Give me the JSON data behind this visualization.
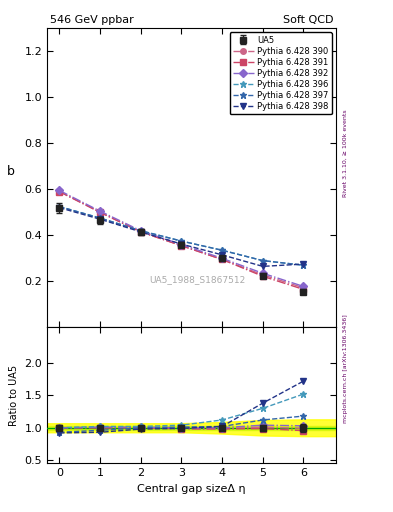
{
  "title_left": "546 GeV ppbar",
  "title_right": "Soft QCD",
  "ylabel_main": "b",
  "ylabel_ratio": "Ratio to UA5",
  "xlabel": "Central gap sizeΔ η",
  "watermark": "UA5_1988_S1867512",
  "right_label_top": "Rivet 3.1.10, ≥ 100k events",
  "right_label_bottom": "mcplots.cern.ch [arXiv:1306.3436]",
  "ylim_main": [
    0.0,
    1.3
  ],
  "ylim_ratio": [
    0.45,
    2.55
  ],
  "yticks_main": [
    0.2,
    0.4,
    0.6,
    0.8,
    1.0,
    1.2
  ],
  "yticks_ratio": [
    0.5,
    1.0,
    1.5,
    2.0
  ],
  "xticks": [
    0,
    1,
    2,
    3,
    4,
    5,
    6
  ],
  "xlim": [
    -0.3,
    6.8
  ],
  "ua5": {
    "label": "UA5",
    "x": [
      0,
      1,
      2,
      3,
      4,
      5,
      6
    ],
    "y": [
      0.52,
      0.465,
      0.415,
      0.36,
      0.3,
      0.225,
      0.155
    ],
    "yerr": [
      0.022,
      0.016,
      0.013,
      0.011,
      0.01,
      0.01,
      0.01
    ],
    "color": "#222222",
    "marker": "s",
    "markersize": 5
  },
  "pythia_runs": [
    {
      "label": "Pythia 6.428 390",
      "x": [
        0,
        1,
        2,
        3,
        4,
        5,
        6
      ],
      "y": [
        0.59,
        0.5,
        0.415,
        0.355,
        0.295,
        0.228,
        0.172
      ],
      "ratio": [
        1.0,
        1.0,
        1.0,
        0.985,
        0.983,
        1.01,
        0.99
      ],
      "color": "#cc6688",
      "linestyle": "-.",
      "marker": "o",
      "markersize": 4
    },
    {
      "label": "Pythia 6.428 391",
      "x": [
        0,
        1,
        2,
        3,
        4,
        5,
        6
      ],
      "y": [
        0.59,
        0.5,
        0.415,
        0.355,
        0.295,
        0.222,
        0.165
      ],
      "ratio": [
        1.0,
        1.0,
        1.0,
        0.985,
        0.983,
        0.987,
        0.955
      ],
      "color": "#cc4466",
      "linestyle": "-.",
      "marker": "s",
      "markersize": 4
    },
    {
      "label": "Pythia 6.428 392",
      "x": [
        0,
        1,
        2,
        3,
        4,
        5,
        6
      ],
      "y": [
        0.595,
        0.505,
        0.42,
        0.36,
        0.3,
        0.235,
        0.178
      ],
      "ratio": [
        1.0,
        1.01,
        1.01,
        1.0,
        1.0,
        1.04,
        1.03
      ],
      "color": "#8866cc",
      "linestyle": "-.",
      "marker": "D",
      "markersize": 4
    },
    {
      "label": "Pythia 6.428 396",
      "x": [
        0,
        1,
        2,
        3,
        4,
        5,
        6
      ],
      "y": [
        0.525,
        0.475,
        0.42,
        0.375,
        0.335,
        0.29,
        0.27
      ],
      "ratio": [
        1.0,
        1.02,
        1.02,
        1.04,
        1.12,
        1.3,
        1.52
      ],
      "color": "#4499bb",
      "linestyle": "--",
      "marker": "*",
      "markersize": 5
    },
    {
      "label": "Pythia 6.428 397",
      "x": [
        0,
        1,
        2,
        3,
        4,
        5,
        6
      ],
      "y": [
        0.525,
        0.475,
        0.42,
        0.375,
        0.335,
        0.29,
        0.27
      ],
      "ratio": [
        0.93,
        0.96,
        1.0,
        1.01,
        1.02,
        1.12,
        1.18
      ],
      "color": "#3366aa",
      "linestyle": "--",
      "marker": "*",
      "markersize": 5
    },
    {
      "label": "Pythia 6.428 398",
      "x": [
        0,
        1,
        2,
        3,
        4,
        5,
        6
      ],
      "y": [
        0.52,
        0.47,
        0.415,
        0.362,
        0.315,
        0.265,
        0.275
      ],
      "ratio": [
        0.92,
        0.93,
        0.98,
        0.99,
        1.02,
        1.38,
        1.72
      ],
      "color": "#223388",
      "linestyle": "--",
      "marker": "v",
      "markersize": 4
    }
  ],
  "green_band": [
    0.97,
    1.03
  ],
  "yellow_band_x": [
    -0.3,
    0,
    1,
    2,
    3,
    4,
    5,
    6,
    6.8
  ],
  "yellow_band_lo": [
    0.93,
    0.93,
    0.93,
    0.93,
    0.93,
    0.91,
    0.88,
    0.87,
    0.87
  ],
  "yellow_band_hi": [
    1.07,
    1.07,
    1.07,
    1.07,
    1.07,
    1.09,
    1.12,
    1.13,
    1.13
  ]
}
